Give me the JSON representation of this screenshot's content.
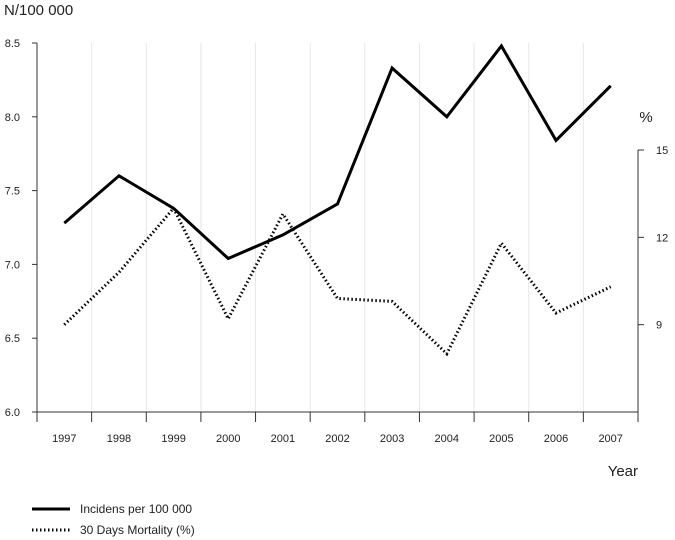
{
  "chart_data": {
    "type": "line",
    "title": "",
    "left_axis_label": "N/100 000",
    "right_axis_label": "%",
    "xlabel": "Year",
    "categories": [
      "1997",
      "1998",
      "1999",
      "2000",
      "2001",
      "2002",
      "2003",
      "2004",
      "2005",
      "2006",
      "2007"
    ],
    "left_axis": {
      "range": [
        6.0,
        8.5
      ],
      "ticks": [
        "6.0",
        "6.5",
        "7.0",
        "7.5",
        "8.0",
        "8.5"
      ]
    },
    "right_axis": {
      "range": [
        6,
        15
      ],
      "ticks": [
        "9",
        "12",
        "15"
      ]
    },
    "grid": "vertical lines",
    "legend_position": "bottom-left",
    "series": [
      {
        "name": "Incidens per 100 000",
        "axis": "left",
        "style": "solid",
        "values": [
          7.28,
          7.6,
          7.38,
          7.04,
          7.2,
          7.41,
          8.33,
          8.0,
          8.48,
          7.84,
          8.21
        ]
      },
      {
        "name": "30 Days Mortality (%)",
        "axis": "right",
        "style": "dotted",
        "values": [
          9.0,
          10.8,
          13.0,
          9.2,
          12.8,
          9.9,
          9.8,
          8.0,
          11.8,
          9.4,
          10.3
        ]
      }
    ]
  }
}
